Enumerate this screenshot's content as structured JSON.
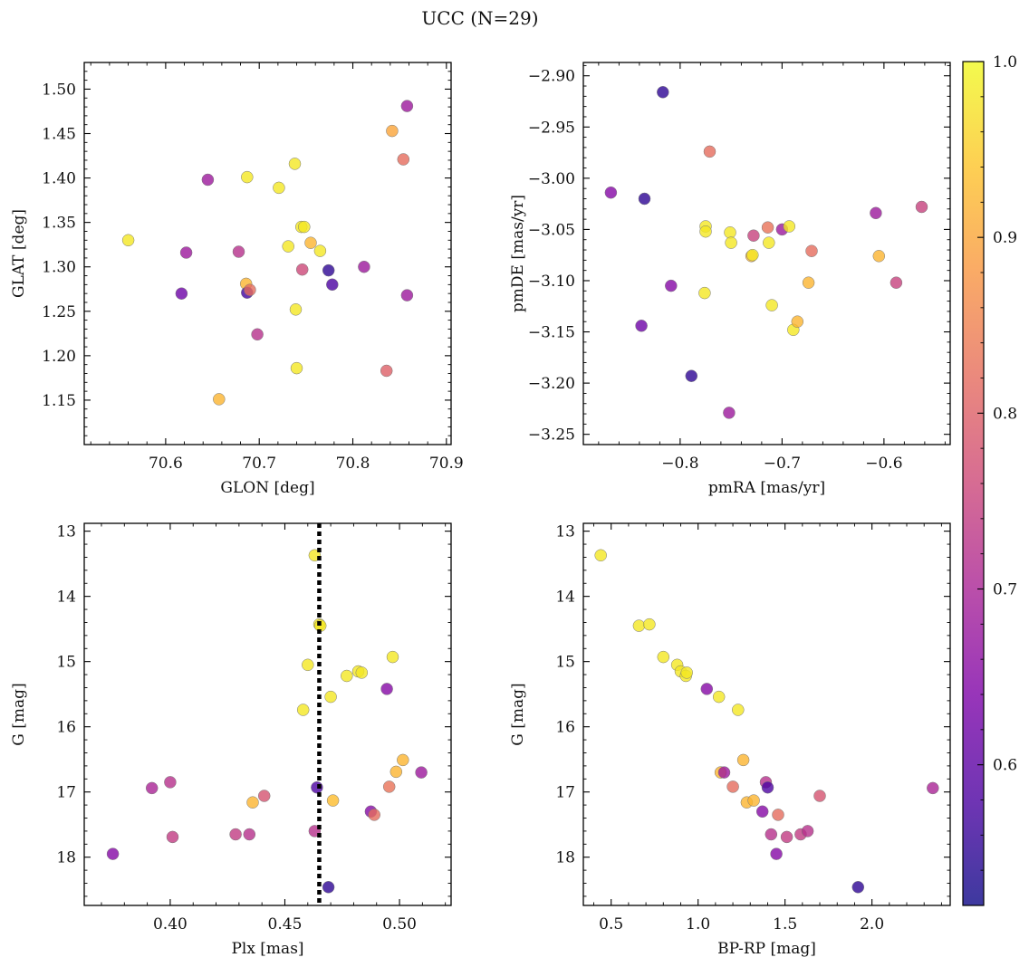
{
  "figure": {
    "title": "UCC (N=29)"
  },
  "colorbar": {
    "range": [
      0.52,
      1.0
    ],
    "ticks": [
      0.6,
      0.7,
      0.8,
      0.9,
      1.0
    ],
    "tick_labels": [
      "0.6",
      "0.7",
      "0.8",
      "0.9",
      "1.0"
    ]
  },
  "chart_data": [
    {
      "type": "scatter",
      "xlabel": "GLON [deg]",
      "ylabel": "GLAT [deg]",
      "xlim": [
        70.513,
        70.905
      ],
      "ylim": [
        1.1,
        1.53
      ],
      "y_inverted": false,
      "xticks": [
        70.6,
        70.7,
        70.8,
        70.9
      ],
      "xtick_labels": [
        "70.6",
        "70.7",
        "70.8",
        "70.9"
      ],
      "yticks": [
        1.15,
        1.2,
        1.25,
        1.3,
        1.35,
        1.4,
        1.45,
        1.5
      ],
      "ytick_labels": [
        "1.15",
        "1.20",
        "1.25",
        "1.30",
        "1.35",
        "1.40",
        "1.45",
        "1.50"
      ],
      "points": [
        {
          "x": 70.56,
          "y": 1.33,
          "c": 0.98
        },
        {
          "x": 70.617,
          "y": 1.27,
          "c": 0.62
        },
        {
          "x": 70.622,
          "y": 1.316,
          "c": 0.68
        },
        {
          "x": 70.645,
          "y": 1.398,
          "c": 0.68
        },
        {
          "x": 70.657,
          "y": 1.151,
          "c": 0.92
        },
        {
          "x": 70.678,
          "y": 1.317,
          "c": 0.72
        },
        {
          "x": 70.686,
          "y": 1.281,
          "c": 0.92
        },
        {
          "x": 70.687,
          "y": 1.401,
          "c": 0.98
        },
        {
          "x": 70.687,
          "y": 1.271,
          "c": 0.57
        },
        {
          "x": 70.69,
          "y": 1.274,
          "c": 0.82
        },
        {
          "x": 70.698,
          "y": 1.224,
          "c": 0.72
        },
        {
          "x": 70.721,
          "y": 1.389,
          "c": 0.98
        },
        {
          "x": 70.731,
          "y": 1.323,
          "c": 0.98
        },
        {
          "x": 70.738,
          "y": 1.416,
          "c": 0.98
        },
        {
          "x": 70.739,
          "y": 1.252,
          "c": 0.98
        },
        {
          "x": 70.74,
          "y": 1.186,
          "c": 0.98
        },
        {
          "x": 70.745,
          "y": 1.345,
          "c": 0.98
        },
        {
          "x": 70.748,
          "y": 1.345,
          "c": 0.98
        },
        {
          "x": 70.746,
          "y": 1.297,
          "c": 0.76
        },
        {
          "x": 70.755,
          "y": 1.327,
          "c": 0.92
        },
        {
          "x": 70.765,
          "y": 1.318,
          "c": 0.98
        },
        {
          "x": 70.774,
          "y": 1.296,
          "c": 0.55
        },
        {
          "x": 70.778,
          "y": 1.28,
          "c": 0.58
        },
        {
          "x": 70.812,
          "y": 1.3,
          "c": 0.68
        },
        {
          "x": 70.836,
          "y": 1.183,
          "c": 0.8
        },
        {
          "x": 70.842,
          "y": 1.453,
          "c": 0.9
        },
        {
          "x": 70.854,
          "y": 1.421,
          "c": 0.82
        },
        {
          "x": 70.858,
          "y": 1.481,
          "c": 0.68
        },
        {
          "x": 70.858,
          "y": 1.268,
          "c": 0.68
        }
      ]
    },
    {
      "type": "scatter",
      "xlabel": "pmRA [mas/yr]",
      "ylabel": "pmDE [mas/yr]",
      "xlim": [
        -0.895,
        -0.535
      ],
      "ylim": [
        -3.26,
        -2.887
      ],
      "y_inverted": false,
      "xticks": [
        -0.8,
        -0.7,
        -0.6
      ],
      "xtick_labels": [
        "−0.8",
        "−0.7",
        "−0.6"
      ],
      "yticks": [
        -3.25,
        -3.2,
        -3.15,
        -3.1,
        -3.05,
        -3.0,
        -2.95,
        -2.9
      ],
      "ytick_labels": [
        "−3.25",
        "−3.20",
        "−3.15",
        "−3.10",
        "−3.05",
        "−3.00",
        "−2.95",
        "−2.90"
      ],
      "points": [
        {
          "x": -0.868,
          "y": -3.014,
          "c": 0.65
        },
        {
          "x": -0.838,
          "y": -3.144,
          "c": 0.62
        },
        {
          "x": -0.835,
          "y": -3.02,
          "c": 0.55
        },
        {
          "x": -0.817,
          "y": -2.916,
          "c": 0.55
        },
        {
          "x": -0.809,
          "y": -3.105,
          "c": 0.65
        },
        {
          "x": -0.789,
          "y": -3.193,
          "c": 0.55
        },
        {
          "x": -0.776,
          "y": -3.112,
          "c": 0.98
        },
        {
          "x": -0.775,
          "y": -3.047,
          "c": 0.98
        },
        {
          "x": -0.775,
          "y": -3.052,
          "c": 0.98
        },
        {
          "x": -0.771,
          "y": -2.974,
          "c": 0.82
        },
        {
          "x": -0.752,
          "y": -3.229,
          "c": 0.68
        },
        {
          "x": -0.751,
          "y": -3.053,
          "c": 0.98
        },
        {
          "x": -0.75,
          "y": -3.063,
          "c": 0.98
        },
        {
          "x": -0.73,
          "y": -3.076,
          "c": 0.92
        },
        {
          "x": -0.729,
          "y": -3.075,
          "c": 0.98
        },
        {
          "x": -0.728,
          "y": -3.056,
          "c": 0.75
        },
        {
          "x": -0.714,
          "y": -3.048,
          "c": 0.83
        },
        {
          "x": -0.713,
          "y": -3.063,
          "c": 0.98
        },
        {
          "x": -0.71,
          "y": -3.124,
          "c": 0.98
        },
        {
          "x": -0.7,
          "y": -3.05,
          "c": 0.68
        },
        {
          "x": -0.693,
          "y": -3.047,
          "c": 0.98
        },
        {
          "x": -0.689,
          "y": -3.148,
          "c": 0.98
        },
        {
          "x": -0.685,
          "y": -3.14,
          "c": 0.92
        },
        {
          "x": -0.674,
          "y": -3.102,
          "c": 0.92
        },
        {
          "x": -0.671,
          "y": -3.071,
          "c": 0.82
        },
        {
          "x": -0.608,
          "y": -3.034,
          "c": 0.68
        },
        {
          "x": -0.605,
          "y": -3.076,
          "c": 0.92
        },
        {
          "x": -0.588,
          "y": -3.102,
          "c": 0.75
        },
        {
          "x": -0.563,
          "y": -3.028,
          "c": 0.75
        }
      ]
    },
    {
      "type": "scatter",
      "xlabel": "Plx [mas]",
      "ylabel": "G [mag]",
      "xlim": [
        0.3625,
        0.5225
      ],
      "ylim": [
        12.88,
        18.74
      ],
      "y_inverted": true,
      "vline": 0.465,
      "xticks": [
        0.4,
        0.45,
        0.5
      ],
      "xtick_labels": [
        "0.40",
        "0.45",
        "0.50"
      ],
      "yticks": [
        13,
        14,
        15,
        16,
        17,
        18
      ],
      "ytick_labels": [
        "13",
        "14",
        "15",
        "16",
        "17",
        "18"
      ],
      "points": [
        {
          "x": 0.375,
          "y": 17.95,
          "c": 0.65
        },
        {
          "x": 0.392,
          "y": 16.94,
          "c": 0.7
        },
        {
          "x": 0.4,
          "y": 16.85,
          "c": 0.72
        },
        {
          "x": 0.401,
          "y": 17.69,
          "c": 0.74
        },
        {
          "x": 0.4285,
          "y": 17.65,
          "c": 0.74
        },
        {
          "x": 0.4345,
          "y": 17.65,
          "c": 0.72
        },
        {
          "x": 0.436,
          "y": 17.16,
          "c": 0.92
        },
        {
          "x": 0.441,
          "y": 17.06,
          "c": 0.78
        },
        {
          "x": 0.458,
          "y": 15.74,
          "c": 0.98
        },
        {
          "x": 0.46,
          "y": 15.05,
          "c": 0.98
        },
        {
          "x": 0.463,
          "y": 17.6,
          "c": 0.72
        },
        {
          "x": 0.463,
          "y": 13.37,
          "c": 0.98
        },
        {
          "x": 0.464,
          "y": 16.93,
          "c": 0.58
        },
        {
          "x": 0.465,
          "y": 14.43,
          "c": 0.98
        },
        {
          "x": 0.4655,
          "y": 14.45,
          "c": 0.98
        },
        {
          "x": 0.469,
          "y": 18.46,
          "c": 0.55
        },
        {
          "x": 0.47,
          "y": 15.54,
          "c": 0.98
        },
        {
          "x": 0.471,
          "y": 17.13,
          "c": 0.93
        },
        {
          "x": 0.477,
          "y": 15.22,
          "c": 0.98
        },
        {
          "x": 0.482,
          "y": 15.15,
          "c": 0.98
        },
        {
          "x": 0.4835,
          "y": 15.17,
          "c": 0.98
        },
        {
          "x": 0.4875,
          "y": 17.3,
          "c": 0.65
        },
        {
          "x": 0.489,
          "y": 17.35,
          "c": 0.82
        },
        {
          "x": 0.4945,
          "y": 15.42,
          "c": 0.65
        },
        {
          "x": 0.4955,
          "y": 16.92,
          "c": 0.83
        },
        {
          "x": 0.497,
          "y": 14.93,
          "c": 0.98
        },
        {
          "x": 0.4985,
          "y": 16.69,
          "c": 0.92
        },
        {
          "x": 0.5015,
          "y": 16.51,
          "c": 0.92
        },
        {
          "x": 0.5095,
          "y": 16.7,
          "c": 0.68
        }
      ]
    },
    {
      "type": "scatter",
      "xlabel": "BP-RP [mag]",
      "ylabel": "G [mag]",
      "xlim": [
        0.34,
        2.45
      ],
      "ylim": [
        12.88,
        18.74
      ],
      "y_inverted": true,
      "xticks": [
        0.5,
        1.0,
        1.5,
        2.0
      ],
      "xtick_labels": [
        "0.5",
        "1.0",
        "1.5",
        "2.0"
      ],
      "yticks": [
        13,
        14,
        15,
        16,
        17,
        18
      ],
      "ytick_labels": [
        "13",
        "14",
        "15",
        "16",
        "17",
        "18"
      ],
      "points": [
        {
          "x": 0.44,
          "y": 13.37,
          "c": 0.98
        },
        {
          "x": 0.66,
          "y": 14.45,
          "c": 0.98
        },
        {
          "x": 0.72,
          "y": 14.43,
          "c": 0.98
        },
        {
          "x": 0.8,
          "y": 14.93,
          "c": 0.98
        },
        {
          "x": 0.88,
          "y": 15.05,
          "c": 0.98
        },
        {
          "x": 0.9,
          "y": 15.15,
          "c": 0.98
        },
        {
          "x": 0.93,
          "y": 15.22,
          "c": 0.98
        },
        {
          "x": 0.935,
          "y": 15.17,
          "c": 0.98
        },
        {
          "x": 1.05,
          "y": 15.42,
          "c": 0.65
        },
        {
          "x": 1.12,
          "y": 15.54,
          "c": 0.98
        },
        {
          "x": 1.13,
          "y": 16.7,
          "c": 0.92
        },
        {
          "x": 1.15,
          "y": 16.7,
          "c": 0.68
        },
        {
          "x": 1.2,
          "y": 16.92,
          "c": 0.82
        },
        {
          "x": 1.23,
          "y": 15.74,
          "c": 0.98
        },
        {
          "x": 1.26,
          "y": 16.51,
          "c": 0.92
        },
        {
          "x": 1.28,
          "y": 17.16,
          "c": 0.92
        },
        {
          "x": 1.32,
          "y": 17.13,
          "c": 0.92
        },
        {
          "x": 1.37,
          "y": 17.3,
          "c": 0.65
        },
        {
          "x": 1.39,
          "y": 16.85,
          "c": 0.72
        },
        {
          "x": 1.4,
          "y": 16.93,
          "c": 0.58
        },
        {
          "x": 1.42,
          "y": 17.65,
          "c": 0.72
        },
        {
          "x": 1.45,
          "y": 17.95,
          "c": 0.65
        },
        {
          "x": 1.46,
          "y": 17.35,
          "c": 0.82
        },
        {
          "x": 1.51,
          "y": 17.69,
          "c": 0.74
        },
        {
          "x": 1.59,
          "y": 17.65,
          "c": 0.74
        },
        {
          "x": 1.63,
          "y": 17.6,
          "c": 0.72
        },
        {
          "x": 1.7,
          "y": 17.06,
          "c": 0.78
        },
        {
          "x": 1.92,
          "y": 18.46,
          "c": 0.55
        },
        {
          "x": 2.35,
          "y": 16.94,
          "c": 0.7
        }
      ]
    }
  ]
}
